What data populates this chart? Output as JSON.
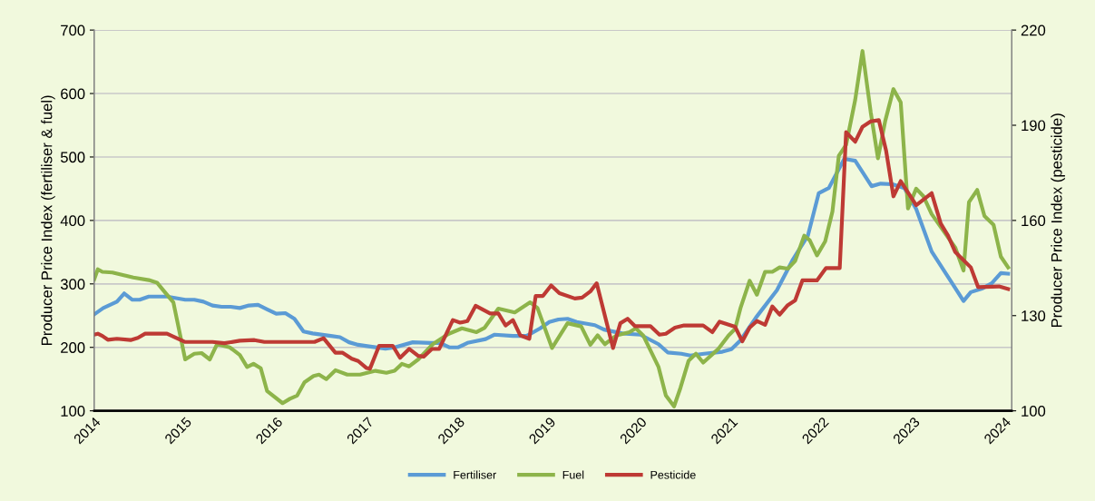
{
  "chart_data": {
    "type": "line",
    "ylabel": "Producer Price Index (fertiliser & fuel)",
    "y2label": "Producer Price Index (pesticide)",
    "xlim": [
      2014,
      2024.08
    ],
    "xticks": [
      2014,
      2015,
      2016,
      2017,
      2018,
      2019,
      2020,
      2021,
      2022,
      2023,
      2024
    ],
    "ylim": [
      100,
      700
    ],
    "yticks": [
      100,
      200,
      300,
      400,
      500,
      600,
      700
    ],
    "y2lim": [
      100,
      220
    ],
    "y2ticks": [
      100,
      130,
      160,
      190,
      220
    ],
    "grid": "y",
    "legend": "bottom",
    "marker": "none",
    "line_style": "solid",
    "series": [
      {
        "name": "Fertiliser",
        "color": "#5b9bd5",
        "x": [
          2014.0,
          2014.1,
          2014.25,
          2014.33,
          2014.42,
          2014.5,
          2014.6,
          2014.8,
          2015.0,
          2015.1,
          2015.2,
          2015.3,
          2015.4,
          2015.5,
          2015.6,
          2015.7,
          2015.8,
          2015.9,
          2016.0,
          2016.1,
          2016.2,
          2016.3,
          2016.4,
          2016.6,
          2016.7,
          2016.8,
          2016.9,
          2017.0,
          2017.2,
          2017.3,
          2017.5,
          2017.7,
          2017.8,
          2017.9,
          2018.0,
          2018.1,
          2018.3,
          2018.4,
          2018.6,
          2018.75,
          2018.9,
          2019.0,
          2019.1,
          2019.2,
          2019.3,
          2019.5,
          2019.6,
          2019.8,
          2020.0,
          2020.2,
          2020.3,
          2020.45,
          2020.55,
          2020.7,
          2020.9,
          2021.0,
          2021.1,
          2021.27,
          2021.5,
          2021.67,
          2021.84,
          2021.96,
          2022.07,
          2022.24,
          2022.36,
          2022.54,
          2022.64,
          2022.77,
          2022.9,
          2023.03,
          2023.2,
          2023.43,
          2023.55,
          2023.63,
          2023.76,
          2023.86,
          2023.96,
          2024.04
        ],
        "values": [
          252,
          262,
          272,
          285,
          275,
          275,
          280,
          280,
          275,
          275,
          272,
          266,
          264,
          264,
          262,
          266,
          267,
          260,
          253,
          254,
          245,
          225,
          222,
          218,
          216,
          208,
          204,
          202,
          198,
          200,
          208,
          207,
          207,
          200,
          200,
          207,
          213,
          220,
          218,
          218,
          230,
          240,
          244,
          245,
          240,
          235,
          228,
          222,
          220,
          205,
          192,
          190,
          187,
          190,
          193,
          197,
          211,
          247,
          290,
          337,
          376,
          443,
          451,
          497,
          494,
          454,
          458,
          457,
          451,
          418,
          351,
          300,
          273,
          287,
          293,
          301,
          317,
          316
        ]
      },
      {
        "name": "Fuel",
        "color": "#8db44a",
        "x": [
          2014.0,
          2014.04,
          2014.09,
          2014.2,
          2014.43,
          2014.6,
          2014.69,
          2014.77,
          2014.87,
          2015.0,
          2015.1,
          2015.18,
          2015.27,
          2015.35,
          2015.49,
          2015.6,
          2015.68,
          2015.75,
          2015.83,
          2015.9,
          2016.07,
          2016.15,
          2016.23,
          2016.31,
          2016.41,
          2016.47,
          2016.55,
          2016.65,
          2016.78,
          2016.92,
          2017.09,
          2017.21,
          2017.3,
          2017.38,
          2017.46,
          2017.56,
          2017.72,
          2017.89,
          2018.04,
          2018.2,
          2018.29,
          2018.44,
          2018.62,
          2018.79,
          2018.87,
          2019.03,
          2019.2,
          2019.35,
          2019.45,
          2019.53,
          2019.61,
          2019.74,
          2019.88,
          2019.95,
          2020.03,
          2020.2,
          2020.28,
          2020.37,
          2020.44,
          2020.53,
          2020.61,
          2020.69,
          2020.86,
          2020.97,
          2021.04,
          2021.1,
          2021.2,
          2021.28,
          2021.37,
          2021.45,
          2021.53,
          2021.62,
          2021.7,
          2021.8,
          2021.86,
          2021.94,
          2022.03,
          2022.11,
          2022.18,
          2022.26,
          2022.36,
          2022.44,
          2022.53,
          2022.61,
          2022.69,
          2022.78,
          2022.86,
          2022.94,
          2023.03,
          2023.11,
          2023.2,
          2023.46,
          2023.55,
          2023.61,
          2023.7,
          2023.78,
          2023.88,
          2023.96,
          2024.04
        ],
        "values": [
          307,
          323,
          319,
          318,
          310,
          306,
          302,
          288,
          271,
          181,
          190,
          191,
          181,
          205,
          200,
          188,
          169,
          174,
          167,
          131,
          112,
          119,
          124,
          145,
          155,
          157,
          150,
          164,
          157,
          157,
          163,
          160,
          163,
          174,
          170,
          181,
          205,
          221,
          230,
          224,
          231,
          261,
          255,
          271,
          262,
          199,
          238,
          233,
          204,
          219,
          205,
          219,
          224,
          230,
          219,
          169,
          124,
          107,
          136,
          179,
          190,
          176,
          198,
          219,
          229,
          262,
          305,
          283,
          319,
          319,
          326,
          324,
          336,
          376,
          369,
          345,
          367,
          414,
          502,
          519,
          590,
          667,
          571,
          498,
          557,
          607,
          586,
          419,
          450,
          438,
          410,
          357,
          321,
          429,
          448,
          407,
          393,
          343,
          326
        ]
      },
      {
        "name": "Pesticide",
        "color": "#be3a34",
        "axis": "y2",
        "x": [
          2014.0,
          2014.04,
          2014.09,
          2014.15,
          2014.25,
          2014.4,
          2014.48,
          2014.56,
          2014.8,
          2015.0,
          2015.3,
          2015.43,
          2015.6,
          2015.76,
          2015.87,
          2016.42,
          2016.52,
          2016.65,
          2016.73,
          2016.83,
          2016.9,
          2016.99,
          2017.03,
          2017.13,
          2017.28,
          2017.36,
          2017.46,
          2017.56,
          2017.62,
          2017.71,
          2017.79,
          2017.94,
          2018.02,
          2018.1,
          2018.19,
          2018.35,
          2018.44,
          2018.52,
          2018.6,
          2018.68,
          2018.78,
          2018.85,
          2018.93,
          2019.02,
          2019.11,
          2019.28,
          2019.36,
          2019.45,
          2019.52,
          2019.7,
          2019.78,
          2019.86,
          2019.94,
          2020.11,
          2020.21,
          2020.28,
          2020.38,
          2020.48,
          2020.69,
          2020.79,
          2020.87,
          2021.04,
          2021.12,
          2021.2,
          2021.28,
          2021.37,
          2021.45,
          2021.53,
          2021.62,
          2021.7,
          2021.78,
          2021.94,
          2022.04,
          2022.19,
          2022.26,
          2022.36,
          2022.44,
          2022.53,
          2022.62,
          2022.7,
          2022.78,
          2022.86,
          2023.03,
          2023.2,
          2023.3,
          2023.38,
          2023.46,
          2023.63,
          2023.71,
          2023.94,
          2024.04
        ],
        "values": [
          124,
          124.3,
          123.6,
          122.4,
          122.7,
          122.3,
          123,
          124.3,
          124.3,
          121.7,
          121.7,
          121.3,
          122.1,
          122.3,
          121.7,
          121.7,
          122.9,
          118.3,
          118.3,
          116.4,
          115.7,
          113.5,
          113.3,
          120.5,
          120.5,
          116.7,
          119.5,
          117.3,
          117.1,
          119.5,
          119.5,
          128.6,
          127.8,
          128.3,
          133.1,
          130.7,
          130.7,
          126.9,
          128.6,
          123.8,
          122.7,
          136.2,
          136.2,
          139.5,
          137.1,
          135.4,
          135.7,
          137.6,
          140.2,
          119.8,
          127.6,
          129,
          126.7,
          126.7,
          124,
          124.3,
          126.2,
          126.9,
          126.9,
          124.8,
          128.1,
          126.5,
          121.9,
          126.2,
          128.3,
          127.1,
          132.9,
          130.3,
          133.3,
          134.8,
          141.1,
          141.1,
          145,
          145,
          187.8,
          184.8,
          189.5,
          191.2,
          191.6,
          181.9,
          167.6,
          172.4,
          164.8,
          168.6,
          159,
          155.2,
          150,
          145.2,
          139,
          139.2,
          138.4
        ]
      }
    ]
  }
}
